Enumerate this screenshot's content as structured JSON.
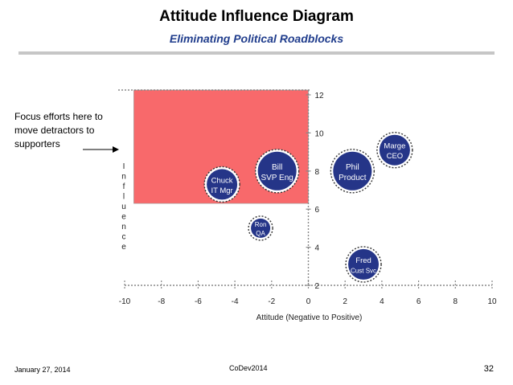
{
  "slide": {
    "title": "Attitude Influence Diagram",
    "subtitle": "Eliminating Political Roadblocks",
    "callout": "Focus efforts here to move detractors to supporters",
    "footer_date": "January 27, 2014",
    "footer_event": "CoDev2014",
    "page_number": "32"
  },
  "chart_data": {
    "type": "scatter",
    "xlabel": "Attitude (Negative to Positive)",
    "ylabel": "Influence",
    "xlim": [
      -10,
      10
    ],
    "ylim": [
      2,
      12
    ],
    "xticks": [
      -10,
      -8,
      -6,
      -4,
      -2,
      0,
      2,
      4,
      6,
      8,
      10
    ],
    "yticks": [
      2,
      4,
      6,
      8,
      10,
      12
    ],
    "focus_region": {
      "x": [
        -9.5,
        0
      ],
      "y": [
        6.3,
        12
      ],
      "color": "#f8696b"
    },
    "points": [
      {
        "label1": "Chuck",
        "label2": "IT Mgr",
        "x": -4.7,
        "y": 7.3,
        "size": "medium"
      },
      {
        "label1": "Bill",
        "label2": "SVP Eng",
        "x": -1.7,
        "y": 8.0,
        "size": "large"
      },
      {
        "label1": "Phil",
        "label2": "Product",
        "x": 2.4,
        "y": 8.0,
        "size": "large"
      },
      {
        "label1": "Marge",
        "label2": "CEO",
        "x": 4.7,
        "y": 9.1,
        "size": "medium"
      },
      {
        "label1": "Ron",
        "label2": "QA",
        "x": -2.6,
        "y": 5.0,
        "size": "small"
      },
      {
        "label1": "Fred",
        "label2": "Cust Svc",
        "x": 3.0,
        "y": 3.1,
        "size": "medium"
      }
    ],
    "colors": {
      "point_fill": "#253588",
      "point_border": "#ffffff",
      "axis": "#888888"
    },
    "grid": false
  }
}
